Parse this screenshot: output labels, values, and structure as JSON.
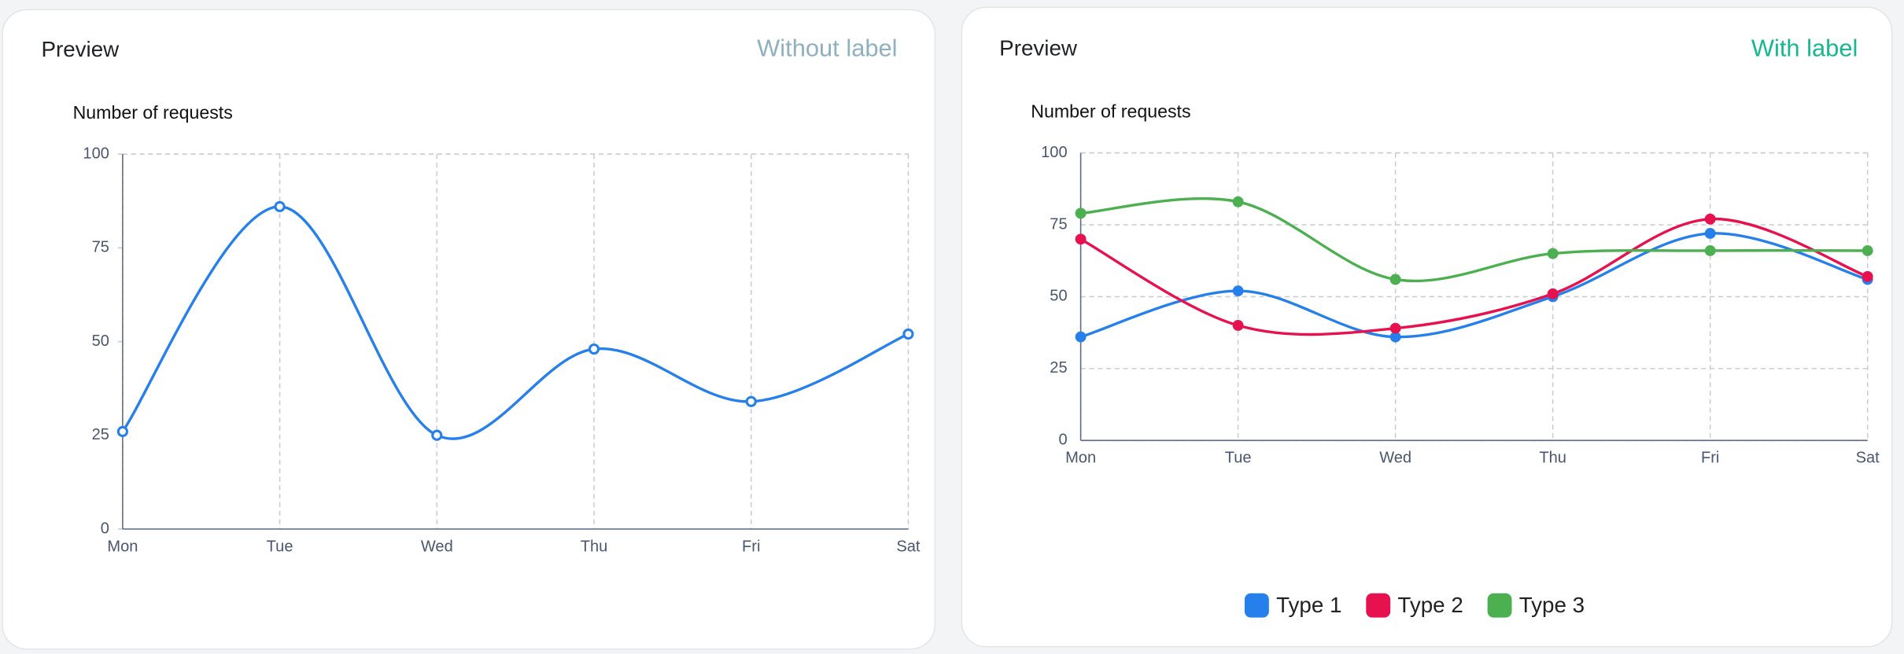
{
  "panels": [
    {
      "header": "Preview",
      "badge": "Without label"
    },
    {
      "header": "Preview",
      "badge": "With label"
    }
  ],
  "chart_data": [
    {
      "type": "line",
      "title": "Number of requests",
      "categories": [
        "Mon",
        "Tue",
        "Wed",
        "Thu",
        "Fri",
        "Sat"
      ],
      "series": [
        {
          "name": null,
          "color": "#2680eb",
          "values": [
            26,
            86,
            25,
            48,
            34,
            52
          ]
        }
      ],
      "ylim": [
        0,
        100
      ],
      "yticks": [
        0,
        25,
        50,
        75,
        100
      ],
      "grid": "x",
      "marker": "hollow",
      "legend": false
    },
    {
      "type": "line",
      "title": "Number of requests",
      "categories": [
        "Mon",
        "Tue",
        "Wed",
        "Thu",
        "Fri",
        "Sat"
      ],
      "series": [
        {
          "name": "Type 1",
          "color": "#2680eb",
          "values": [
            36,
            52,
            36,
            50,
            72,
            56
          ]
        },
        {
          "name": "Type 2",
          "color": "#e8114f",
          "values": [
            70,
            40,
            39,
            51,
            77,
            57
          ]
        },
        {
          "name": "Type 3",
          "color": "#4caf50",
          "values": [
            79,
            83,
            56,
            65,
            66,
            66
          ]
        }
      ],
      "ylim": [
        0,
        100
      ],
      "yticks": [
        0,
        25,
        50,
        75,
        100
      ],
      "grid": "both",
      "marker": "filled",
      "legend": "bottom"
    }
  ]
}
